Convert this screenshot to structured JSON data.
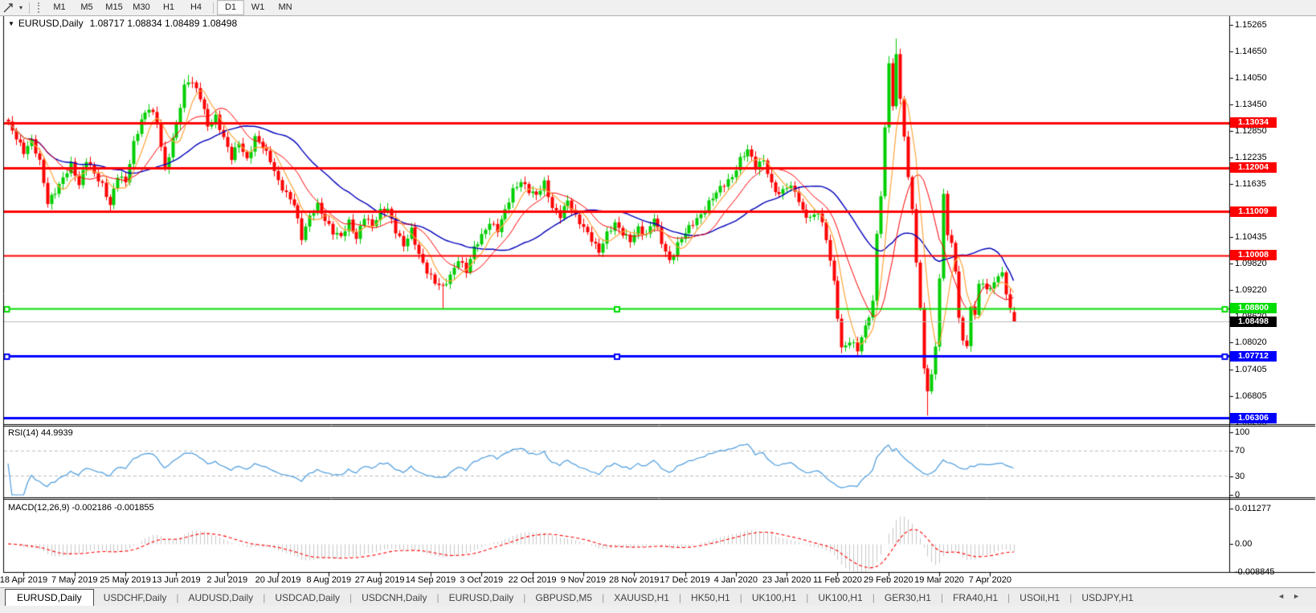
{
  "toolbar": {
    "tool_icon": "trendline-tool",
    "dropdown_icon": "▾",
    "timeframes": [
      "M1",
      "M5",
      "M15",
      "M30",
      "H1",
      "H4",
      "D1",
      "W1",
      "MN"
    ],
    "active_timeframe": "D1"
  },
  "window": {
    "title_marker": "▼",
    "symbol": "EURUSD,Daily",
    "ohlc_text": "1.08717 1.08834 1.08489 1.08498"
  },
  "price_axis": {
    "ticks": [
      "1.15265",
      "1.14650",
      "1.14050",
      "1.13450",
      "1.12850",
      "1.12235",
      "1.11635",
      "1.11020",
      "1.10435",
      "1.09820",
      "1.09220",
      "1.08620",
      "1.08020",
      "1.07405",
      "1.06805",
      "1.06205"
    ],
    "tags": [
      {
        "text": "1.13034",
        "price": 1.13034,
        "bg": "#ff0000",
        "fg": "#ffffff"
      },
      {
        "text": "1.12004",
        "price": 1.12004,
        "bg": "#ff0000",
        "fg": "#ffffff"
      },
      {
        "text": "1.11009",
        "price": 1.11009,
        "bg": "#ff0000",
        "fg": "#ffffff"
      },
      {
        "text": "1.10008",
        "price": 1.10008,
        "bg": "#ff0000",
        "fg": "#ffffff"
      },
      {
        "text": "1.08800",
        "price": 1.088,
        "bg": "#00dd00",
        "fg": "#ffffff"
      },
      {
        "text": "1.07712",
        "price": 1.07712,
        "bg": "#0000ff",
        "fg": "#ffffff"
      },
      {
        "text": "1.06306",
        "price": 1.06306,
        "bg": "#0000ff",
        "fg": "#ffffff"
      },
      {
        "text": "1.08498",
        "price": 1.08498,
        "bg": "#000000",
        "fg": "#ffffff"
      }
    ]
  },
  "rsi_pane": {
    "label": "RSI(14) 44.9939",
    "scale": [
      {
        "text": "100",
        "value": 100
      },
      {
        "text": "70",
        "value": 70
      },
      {
        "text": "30",
        "value": 30
      },
      {
        "text": "0",
        "value": 0
      }
    ]
  },
  "macd_pane": {
    "label": "MACD(12,26,9) -0.002186 -0.001855",
    "scale": [
      {
        "text": "0.011277",
        "value": 0.011277
      },
      {
        "text": "0.00",
        "value": 0
      },
      {
        "text": "-0.008845",
        "value": -0.008845
      }
    ]
  },
  "time_axis": {
    "labels": [
      "18 Apr 2019",
      "7 May 2019",
      "25 May 2019",
      "13 Jun 2019",
      "2 Jul 2019",
      "20 Jul 2019",
      "8 Aug 2019",
      "27 Aug 2019",
      "14 Sep 2019",
      "3 Oct 2019",
      "22 Oct 2019",
      "9 Nov 2019",
      "28 Nov 2019",
      "17 Dec 2019",
      "4 Jan 2020",
      "23 Jan 2020",
      "11 Feb 2020",
      "29 Feb 2020",
      "19 Mar 2020",
      "7 Apr 2020"
    ]
  },
  "tab_bar": {
    "tabs": [
      "EURUSD,Daily",
      "USDCHF,Daily",
      "AUDUSD,Daily",
      "USDCAD,Daily",
      "USDCNH,Daily",
      "EURUSD,Daily",
      "GBPUSD,M5",
      "XAUUSD,H1",
      "HK50,H1",
      "UK100,H1",
      "UK100,H1",
      "GER30,H1",
      "FRA40,H1",
      "USOil,H1",
      "USDJPY,H1"
    ],
    "active_index": 0,
    "scroll_left_icon": "◄",
    "scroll_right_icon": "►"
  },
  "chart_data": {
    "type": "candlestick",
    "symbol": "EURUSD",
    "timeframe": "Daily",
    "title": "EURUSD,Daily",
    "current_bar": {
      "open": 1.08717,
      "high": 1.08834,
      "low": 1.08489,
      "close": 1.08498
    },
    "bar_count": 258,
    "ylim": [
      1.0618,
      1.1546
    ],
    "colors": {
      "up": "#00ce00",
      "down": "#ff0000",
      "ma_fast": "#ffa43b",
      "ma_mid": "#ff0000",
      "ma_slow": "#0000bb",
      "rsi_line": "#4a9bdd",
      "rsi_level": "#bbbbbb",
      "macd_bar": "#c8c8c8",
      "macd_signal": "#ff0000",
      "sr_red": "#ff0000",
      "sr_green": "#00dd00",
      "sr_blue": "#0000ff",
      "bid_line": "#bdbdbd"
    },
    "moving_averages": [
      {
        "period": 6,
        "color_key": "ma_fast"
      },
      {
        "period": 13,
        "color_key": "ma_mid"
      },
      {
        "period": 30,
        "color_key": "ma_slow"
      }
    ],
    "horizontal_lines": [
      {
        "price": 1.13034,
        "color_key": "sr_red",
        "width": 3,
        "handles": false
      },
      {
        "price": 1.12004,
        "color_key": "sr_red",
        "width": 3,
        "handles": false
      },
      {
        "price": 1.11009,
        "color_key": "sr_red",
        "width": 3,
        "handles": false
      },
      {
        "price": 1.10008,
        "color_key": "sr_red",
        "width": 2,
        "handles": false
      },
      {
        "price": 1.088,
        "color_key": "sr_green",
        "width": 2,
        "handles": true
      },
      {
        "price": 1.08498,
        "color_key": "bid_line",
        "width": 1,
        "handles": false
      },
      {
        "price": 1.07712,
        "color_key": "sr_blue",
        "width": 3,
        "handles": true
      },
      {
        "price": 1.06306,
        "color_key": "sr_blue",
        "width": 3,
        "handles": false
      }
    ],
    "rsi": {
      "period": 14,
      "current": 44.9939,
      "levels": [
        70,
        30
      ]
    },
    "macd": {
      "fast": 12,
      "slow": 26,
      "signal": 9,
      "current_main": -0.002186,
      "current_signal": -0.001855,
      "scale_max": 0.011277,
      "scale_min": -0.008845
    },
    "close_anchors": [
      [
        0,
        1.1298
      ],
      [
        2,
        1.127
      ],
      [
        4,
        1.124
      ],
      [
        6,
        1.1262
      ],
      [
        8,
        1.121
      ],
      [
        10,
        1.112
      ],
      [
        12,
        1.115
      ],
      [
        14,
        1.1178
      ],
      [
        16,
        1.1205
      ],
      [
        18,
        1.116
      ],
      [
        20,
        1.1222
      ],
      [
        22,
        1.119
      ],
      [
        24,
        1.1158
      ],
      [
        26,
        1.1112
      ],
      [
        28,
        1.1185
      ],
      [
        30,
        1.1172
      ],
      [
        32,
        1.1255
      ],
      [
        34,
        1.1305
      ],
      [
        36,
        1.1338
      ],
      [
        38,
        1.131
      ],
      [
        40,
        1.1195
      ],
      [
        43,
        1.1295
      ],
      [
        45,
        1.1385
      ],
      [
        46,
        1.1402
      ],
      [
        47,
        1.1398
      ],
      [
        49,
        1.1362
      ],
      [
        51,
        1.1292
      ],
      [
        53,
        1.1315
      ],
      [
        55,
        1.1272
      ],
      [
        57,
        1.1225
      ],
      [
        59,
        1.1255
      ],
      [
        61,
        1.1215
      ],
      [
        63,
        1.1272
      ],
      [
        65,
        1.1252
      ],
      [
        67,
        1.1215
      ],
      [
        69,
        1.1165
      ],
      [
        71,
        1.1142
      ],
      [
        73,
        1.1122
      ],
      [
        75,
        1.104
      ],
      [
        77,
        1.1085
      ],
      [
        79,
        1.1115
      ],
      [
        81,
        1.1085
      ],
      [
        83,
        1.1055
      ],
      [
        85,
        1.104
      ],
      [
        87,
        1.1075
      ],
      [
        89,
        1.1042
      ],
      [
        91,
        1.1092
      ],
      [
        93,
        1.1065
      ],
      [
        95,
        1.1098
      ],
      [
        97,
        1.1108
      ],
      [
        99,
        1.106
      ],
      [
        101,
        1.1022
      ],
      [
        103,
        1.1055
      ],
      [
        105,
        1.1002
      ],
      [
        107,
        1.0968
      ],
      [
        109,
        1.094
      ],
      [
        111,
        1.0925
      ],
      [
        113,
        1.0952
      ],
      [
        115,
        1.0995
      ],
      [
        117,
        1.0968
      ],
      [
        119,
        1.1015
      ],
      [
        121,
        1.1042
      ],
      [
        123,
        1.1078
      ],
      [
        125,
        1.1062
      ],
      [
        127,
        1.1102
      ],
      [
        129,
        1.1145
      ],
      [
        131,
        1.117
      ],
      [
        133,
        1.1152
      ],
      [
        135,
        1.1138
      ],
      [
        137,
        1.1162
      ],
      [
        139,
        1.1108
      ],
      [
        141,
        1.1095
      ],
      [
        143,
        1.1128
      ],
      [
        145,
        1.1085
      ],
      [
        147,
        1.1062
      ],
      [
        149,
        1.104
      ],
      [
        151,
        1.1012
      ],
      [
        153,
        1.1048
      ],
      [
        155,
        1.107
      ],
      [
        157,
        1.1052
      ],
      [
        159,
        1.1038
      ],
      [
        161,
        1.1062
      ],
      [
        163,
        1.1042
      ],
      [
        165,
        1.1088
      ],
      [
        167,
        1.1035
      ],
      [
        169,
        1.0988
      ],
      [
        171,
        1.1022
      ],
      [
        173,
        1.1052
      ],
      [
        175,
        1.1078
      ],
      [
        177,
        1.1095
      ],
      [
        179,
        1.1118
      ],
      [
        181,
        1.1142
      ],
      [
        183,
        1.1165
      ],
      [
        185,
        1.1182
      ],
      [
        187,
        1.1218
      ],
      [
        189,
        1.1238
      ],
      [
        191,
        1.1202
      ],
      [
        193,
        1.1222
      ],
      [
        195,
        1.1162
      ],
      [
        197,
        1.1135
      ],
      [
        199,
        1.1158
      ],
      [
        201,
        1.1152
      ],
      [
        203,
        1.1102
      ],
      [
        205,
        1.1082
      ],
      [
        207,
        1.1098
      ],
      [
        209,
        1.1042
      ],
      [
        211,
        1.0942
      ],
      [
        213,
        1.0785
      ],
      [
        215,
        1.0802
      ],
      [
        217,
        1.0788
      ],
      [
        219,
        1.0842
      ],
      [
        221,
        1.0892
      ],
      [
        222,
        1.105
      ],
      [
        223,
        1.1135
      ],
      [
        224,
        1.129
      ],
      [
        225,
        1.144
      ],
      [
        226,
        1.134
      ],
      [
        227,
        1.146
      ],
      [
        228,
        1.136
      ],
      [
        229,
        1.127
      ],
      [
        230,
        1.118
      ],
      [
        231,
        1.1105
      ],
      [
        232,
        1.0982
      ],
      [
        233,
        1.0882
      ],
      [
        234,
        1.0742
      ],
      [
        235,
        1.0692
      ],
      [
        236,
        1.0732
      ],
      [
        237,
        1.0792
      ],
      [
        238,
        1.095
      ],
      [
        239,
        1.114
      ],
      [
        240,
        1.1045
      ],
      [
        241,
        1.103
      ],
      [
        242,
        1.0962
      ],
      [
        243,
        1.0862
      ],
      [
        244,
        1.0812
      ],
      [
        245,
        1.0792
      ],
      [
        246,
        1.0892
      ],
      [
        247,
        1.0862
      ],
      [
        248,
        1.0932
      ],
      [
        249,
        1.0938
      ],
      [
        250,
        1.0915
      ],
      [
        252,
        1.0942
      ],
      [
        254,
        1.0962
      ],
      [
        255,
        1.0912
      ],
      [
        257,
        1.08498
      ]
    ],
    "special_wicks": [
      {
        "i": 46,
        "high": 1.1412
      },
      {
        "i": 75,
        "low": 1.1027
      },
      {
        "i": 111,
        "low": 1.0879
      },
      {
        "i": 213,
        "low": 1.0778
      },
      {
        "i": 217,
        "low": 1.0777
      },
      {
        "i": 225,
        "high": 1.1455
      },
      {
        "i": 227,
        "high": 1.1495
      },
      {
        "i": 235,
        "low": 1.0636
      }
    ]
  }
}
